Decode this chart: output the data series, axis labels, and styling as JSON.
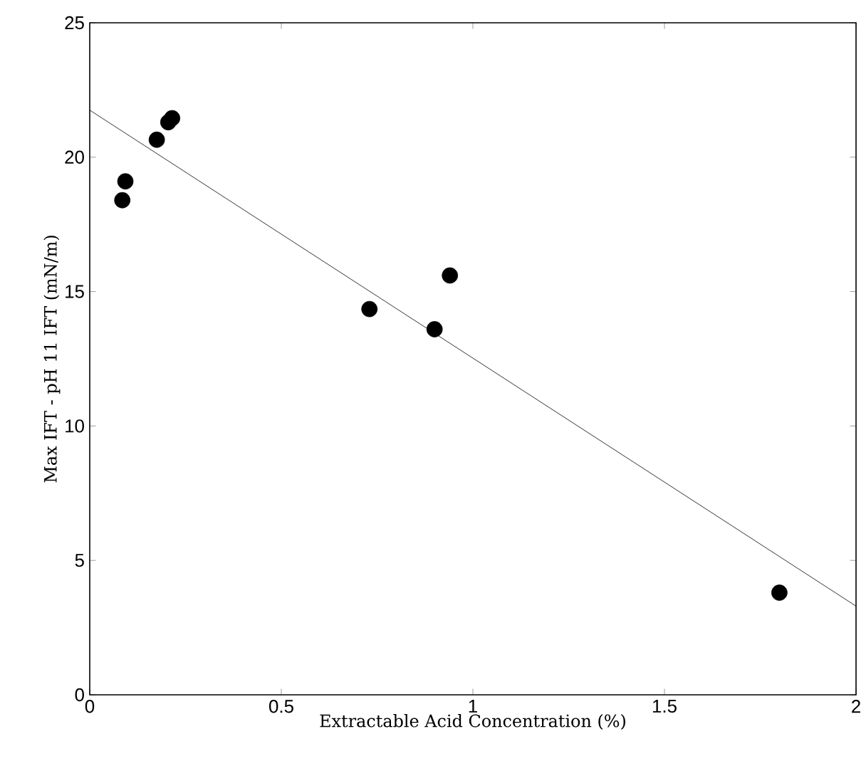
{
  "chart_data": {
    "type": "scatter",
    "xlabel": "Extractable Acid Concentration (%)",
    "ylabel": "Max IFT - pH 11 IFT (mN/m)",
    "xlim": [
      0,
      2
    ],
    "ylim": [
      0,
      25
    ],
    "xticks": [
      0,
      0.5,
      1,
      1.5,
      2
    ],
    "yticks": [
      0,
      5,
      10,
      15,
      20,
      25
    ],
    "grid": false,
    "marker": "circle",
    "series": [
      {
        "color": "#000000",
        "x": [
          0.085,
          0.093,
          0.175,
          0.205,
          0.215,
          0.73,
          0.9,
          0.94,
          1.8
        ],
        "values": [
          18.4,
          19.1,
          20.65,
          21.3,
          21.45,
          14.35,
          13.6,
          15.6,
          3.8
        ]
      },
      {
        "type": "line",
        "color": "#000000",
        "marker": "none",
        "x": [
          0,
          2
        ],
        "values": [
          21.75,
          3.3
        ]
      }
    ]
  }
}
